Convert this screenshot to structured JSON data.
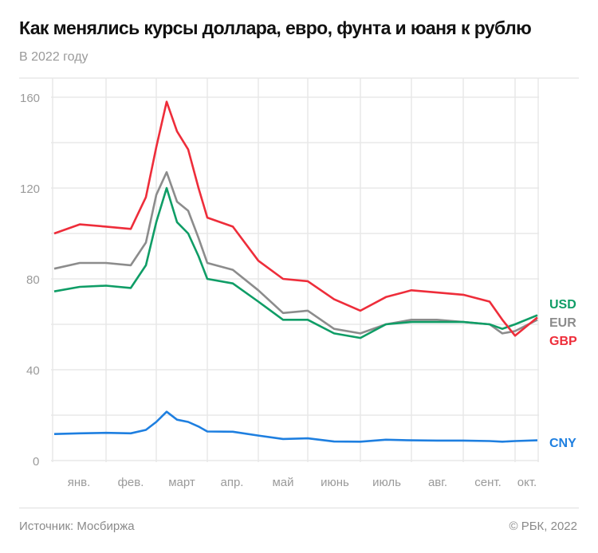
{
  "header": {
    "title": "Как менялись курсы доллара, евро, фунта и юаня к рублю",
    "subtitle": "В 2022 году"
  },
  "footer": {
    "source": "Источник: Мосбиржа",
    "copyright": "© РБК, 2022"
  },
  "colors": {
    "USD": "#0f9d66",
    "EUR": "#8c8c8c",
    "GBP": "#ee2d3a",
    "CNY": "#1e7fe0",
    "grid": "#e6e6e6",
    "axis_text": "#9a9a9a"
  },
  "chart_data": {
    "type": "line",
    "title": "Как менялись курсы доллара, евро, фунта и юаня к рублю",
    "subtitle": "В 2022 году",
    "xlabel": "",
    "ylabel": "",
    "ylim": [
      0,
      170
    ],
    "yticks": [
      0,
      40,
      80,
      120,
      160
    ],
    "grid": true,
    "legend_position": "right, inline at line ends",
    "x_month_labels": [
      "янв.",
      "фев.",
      "март",
      "апр.",
      "май",
      "июнь",
      "июль",
      "авг.",
      "сент.",
      "окт."
    ],
    "x": [
      "01.01",
      "15.01",
      "01.02",
      "15.02",
      "24.02",
      "01.03",
      "05.03",
      "10.03",
      "15.03",
      "20.03",
      "01.04",
      "15.04",
      "01.05",
      "15.05",
      "01.06",
      "15.06",
      "01.07",
      "15.07",
      "01.08",
      "15.08",
      "01.09",
      "15.09",
      "22.09",
      "01.10",
      "10.10"
    ],
    "series": [
      {
        "name": "USD",
        "values": [
          74.5,
          76.5,
          77,
          76,
          86,
          105,
          120,
          105,
          100,
          90,
          80,
          78,
          70,
          62,
          62,
          56,
          54,
          60,
          61,
          61,
          61,
          60,
          58,
          60,
          64
        ]
      },
      {
        "name": "EUR",
        "values": [
          84.5,
          87,
          87,
          86,
          96,
          117,
          127,
          114,
          110,
          98,
          87,
          84,
          75,
          65,
          66,
          58,
          56,
          60,
          62,
          62,
          61,
          60,
          56,
          57,
          62
        ]
      },
      {
        "name": "GBP",
        "values": [
          100,
          104,
          103,
          102,
          116,
          138,
          158,
          145,
          137,
          120,
          107,
          103,
          88,
          80,
          79,
          71,
          66,
          72,
          75,
          74,
          73,
          70,
          62,
          55,
          63
        ]
      },
      {
        "name": "CNY",
        "values": [
          11.7,
          12,
          12.2,
          12,
          13.5,
          17,
          21.5,
          18,
          17,
          15,
          12.8,
          12.7,
          11,
          9.5,
          9.8,
          8.4,
          8.3,
          9.2,
          8.9,
          8.8,
          8.8,
          8.6,
          8.3,
          8.6,
          8.9
        ]
      }
    ]
  },
  "legend": {
    "USD": "USD",
    "EUR": "EUR",
    "GBP": "GBP",
    "CNY": "CNY"
  },
  "axis": {
    "y_labels": [
      "160",
      "120",
      "80",
      "40",
      "0"
    ],
    "x_labels": [
      "янв.",
      "фев.",
      "март",
      "апр.",
      "май",
      "июнь",
      "июль",
      "авг.",
      "сент.",
      "окт."
    ]
  }
}
